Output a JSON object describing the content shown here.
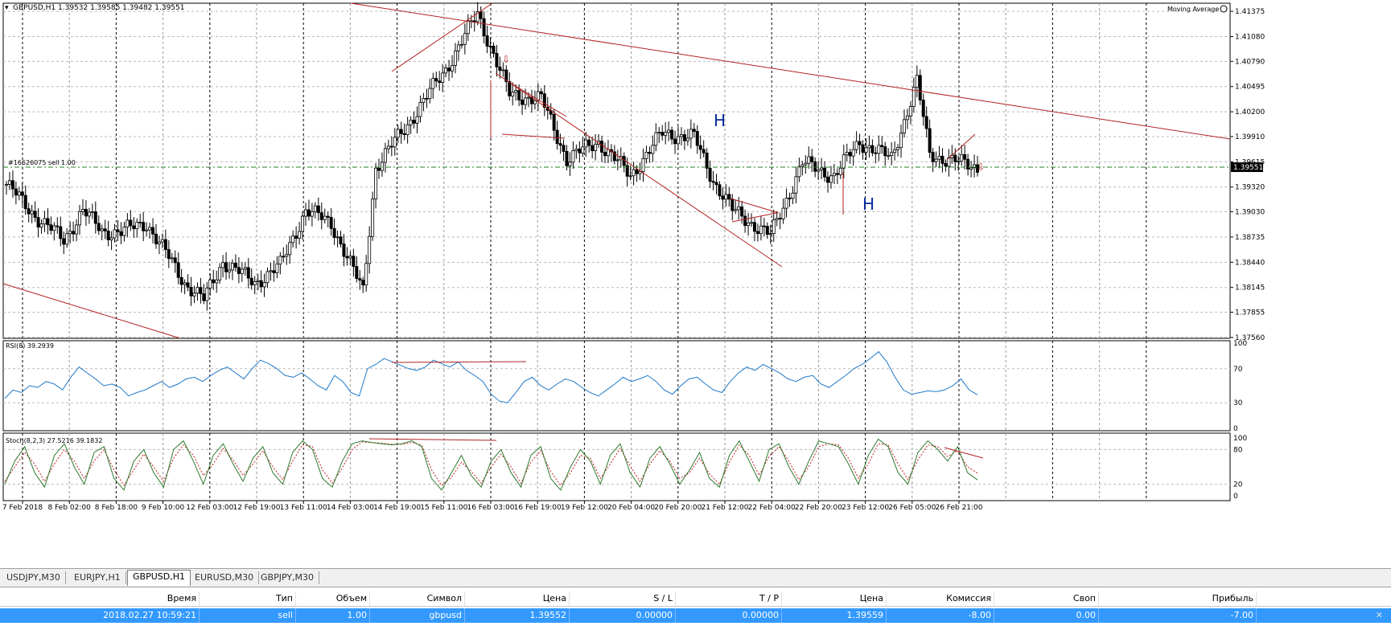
{
  "chart_info": {
    "header": "GBPUSD,H1  1.39532 1.39585 1.39482 1.39551",
    "indicator_label": "Moving Average",
    "order_label": "#16626075 sell 1.00",
    "current_price": "1.39551",
    "pattern_labels": [
      "H",
      "H"
    ],
    "rsi_label": "RSI(8) 39.2939",
    "stoch_label": "Stoch(8,2,3) 27.5216 39.1832",
    "colors": {
      "up_candle": "#ffffff",
      "down_candle": "#000000",
      "trendline": "#b22222",
      "rsi": "#1e78c8",
      "stoch_main": "#2f7a2f",
      "stoch_signal": "#c02020",
      "order_line": "#208020",
      "pattern_text": "#0a2a9c"
    }
  },
  "chart_data": [
    {
      "type": "candlestick",
      "symbol": "GBPUSD",
      "timeframe": "H1",
      "y_ticks": [
        "1.41375",
        "1.41080",
        "1.40790",
        "1.40495",
        "1.40200",
        "1.39910",
        "1.39615",
        "1.39320",
        "1.39030",
        "1.38735",
        "1.38440",
        "1.38145",
        "1.37855",
        "1.37560"
      ],
      "ylim": [
        1.3755,
        1.4147
      ],
      "x_ticks": [
        "7 Feb 2018",
        "8 Feb 02:00",
        "8 Feb 18:00",
        "9 Feb 10:00",
        "12 Feb 03:00",
        "12 Feb 19:00",
        "13 Feb 11:00",
        "14 Feb 03:00",
        "14 Feb 19:00",
        "15 Feb 11:00",
        "16 Feb 03:00",
        "16 Feb 19:00",
        "19 Feb 12:00",
        "20 Feb 04:00",
        "20 Feb 20:00",
        "21 Feb 12:00",
        "22 Feb 04:00",
        "22 Feb 20:00",
        "23 Feb 12:00",
        "26 Feb 05:00",
        "26 Feb 21:00"
      ],
      "close_anchors": [
        {
          "i": 0,
          "v": 1.3935
        },
        {
          "i": 10,
          "v": 1.3895
        },
        {
          "i": 18,
          "v": 1.387
        },
        {
          "i": 24,
          "v": 1.3905
        },
        {
          "i": 30,
          "v": 1.388
        },
        {
          "i": 36,
          "v": 1.388
        },
        {
          "i": 44,
          "v": 1.389
        },
        {
          "i": 56,
          "v": 1.382
        },
        {
          "i": 62,
          "v": 1.38
        },
        {
          "i": 68,
          "v": 1.3845
        },
        {
          "i": 78,
          "v": 1.382
        },
        {
          "i": 86,
          "v": 1.384
        },
        {
          "i": 94,
          "v": 1.3905
        },
        {
          "i": 102,
          "v": 1.389
        },
        {
          "i": 112,
          "v": 1.381
        },
        {
          "i": 116,
          "v": 1.3955
        },
        {
          "i": 126,
          "v": 1.4005
        },
        {
          "i": 138,
          "v": 1.407
        },
        {
          "i": 148,
          "v": 1.4135
        },
        {
          "i": 158,
          "v": 1.404
        },
        {
          "i": 168,
          "v": 1.4035
        },
        {
          "i": 176,
          "v": 1.3965
        },
        {
          "i": 186,
          "v": 1.3985
        },
        {
          "i": 196,
          "v": 1.3945
        },
        {
          "i": 206,
          "v": 1.3995
        },
        {
          "i": 216,
          "v": 1.399
        },
        {
          "i": 222,
          "v": 1.394
        },
        {
          "i": 228,
          "v": 1.3905
        },
        {
          "i": 240,
          "v": 1.3875
        },
        {
          "i": 250,
          "v": 1.396
        },
        {
          "i": 260,
          "v": 1.3945
        },
        {
          "i": 268,
          "v": 1.3985
        },
        {
          "i": 278,
          "v": 1.3965
        },
        {
          "i": 286,
          "v": 1.4055
        },
        {
          "i": 290,
          "v": 1.397
        },
        {
          "i": 300,
          "v": 1.396
        },
        {
          "i": 305,
          "v": 1.3955
        }
      ]
    },
    {
      "type": "line",
      "name": "RSI(8)",
      "value": 39.2939,
      "ylim": [
        0,
        100
      ],
      "y_ticks": [
        "100",
        "70",
        "30",
        "0"
      ],
      "values": [
        35,
        45,
        42,
        50,
        48,
        55,
        52,
        45,
        60,
        72,
        65,
        58,
        50,
        52,
        48,
        38,
        42,
        45,
        50,
        55,
        48,
        52,
        58,
        60,
        55,
        62,
        68,
        72,
        65,
        58,
        70,
        80,
        76,
        70,
        62,
        60,
        65,
        58,
        50,
        45,
        62,
        55,
        42,
        38,
        70,
        75,
        82,
        78,
        74,
        70,
        68,
        72,
        80,
        76,
        72,
        78,
        68,
        62,
        55,
        40,
        32,
        30,
        42,
        55,
        60,
        50,
        45,
        52,
        58,
        55,
        48,
        42,
        38,
        45,
        52,
        60,
        55,
        58,
        62,
        55,
        45,
        40,
        50,
        58,
        60,
        52,
        45,
        42,
        55,
        65,
        72,
        68,
        75,
        70,
        65,
        58,
        55,
        60,
        62,
        52,
        48,
        55,
        62,
        70,
        75,
        82,
        90,
        78,
        60,
        45,
        40,
        42,
        44,
        43,
        45,
        50,
        58,
        45,
        39.3
      ]
    },
    {
      "type": "line",
      "name": "Stoch(8,2,3)",
      "main_value": 27.5216,
      "signal_value": 39.1832,
      "ylim": [
        0,
        100
      ],
      "y_ticks": [
        "100",
        "80",
        "20",
        "0"
      ],
      "main": [
        20,
        60,
        85,
        40,
        15,
        70,
        90,
        50,
        20,
        75,
        85,
        30,
        10,
        60,
        80,
        40,
        15,
        80,
        95,
        60,
        20,
        70,
        90,
        55,
        25,
        65,
        85,
        40,
        20,
        75,
        95,
        80,
        30,
        15,
        60,
        90,
        95,
        92,
        90,
        88,
        90,
        95,
        85,
        30,
        10,
        40,
        70,
        35,
        15,
        60,
        80,
        40,
        15,
        70,
        85,
        30,
        10,
        50,
        80,
        60,
        20,
        70,
        90,
        40,
        15,
        65,
        85,
        55,
        20,
        45,
        75,
        30,
        15,
        70,
        95,
        60,
        25,
        80,
        90,
        50,
        20,
        60,
        95,
        90,
        85,
        55,
        20,
        70,
        98,
        85,
        40,
        20,
        75,
        95,
        80,
        60,
        85,
        40,
        27.5
      ],
      "signal": [
        25,
        50,
        75,
        55,
        25,
        55,
        80,
        60,
        30,
        60,
        80,
        45,
        18,
        45,
        72,
        50,
        25,
        65,
        88,
        70,
        35,
        55,
        82,
        62,
        35,
        55,
        78,
        50,
        28,
        60,
        88,
        85,
        45,
        22,
        48,
        80,
        93,
        92,
        91,
        89,
        89,
        92,
        88,
        45,
        18,
        32,
        58,
        42,
        22,
        50,
        72,
        50,
        22,
        58,
        78,
        42,
        18,
        40,
        70,
        65,
        30,
        55,
        82,
        52,
        25,
        55,
        78,
        60,
        30,
        40,
        65,
        38,
        20,
        58,
        88,
        70,
        35,
        68,
        85,
        60,
        28,
        50,
        85,
        90,
        88,
        65,
        30,
        55,
        90,
        88,
        55,
        28,
        62,
        88,
        85,
        68,
        78,
        50,
        39.2
      ]
    }
  ],
  "symbol_tabs": [
    {
      "label": "USDJPY,M30",
      "active": false
    },
    {
      "label": "EURJPY,H1",
      "active": false
    },
    {
      "label": "GBPUSD,H1",
      "active": true
    },
    {
      "label": "EURUSD,M30",
      "active": false
    },
    {
      "label": "GBPJPY,M30",
      "active": false
    }
  ],
  "orders_table": {
    "columns": [
      "Время",
      "Тип",
      "Объем",
      "Символ",
      "Цена",
      "S / L",
      "T / P",
      "Цена",
      "Комиссия",
      "Своп",
      "Прибыль"
    ],
    "rows": [
      [
        "2018.02.27 10:59:21",
        "sell",
        "1.00",
        "gbpusd",
        "1.39552",
        "0.00000",
        "0.00000",
        "1.39559",
        "-8.00",
        "0.00",
        "-7.00"
      ]
    ]
  }
}
